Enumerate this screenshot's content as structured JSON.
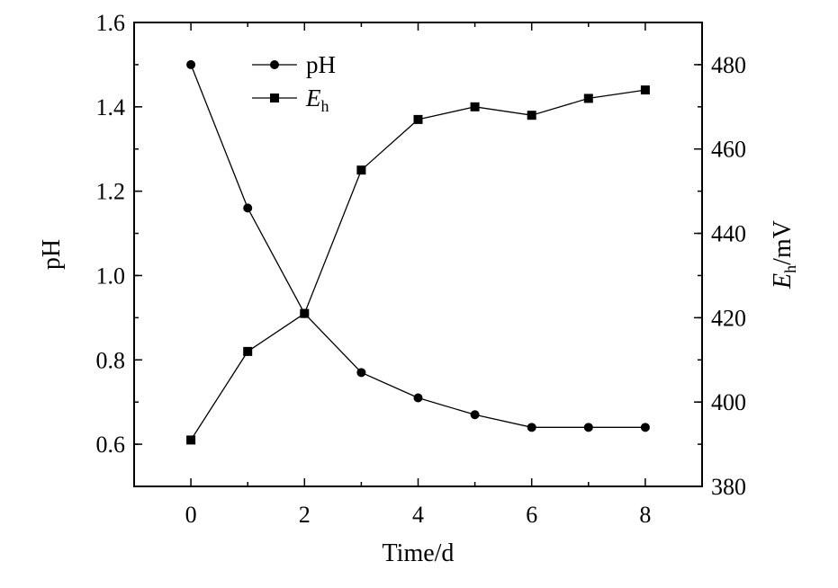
{
  "chart_data": {
    "type": "line",
    "xlabel": "Time/d",
    "ylabel_left": "pH",
    "ylabel_right": "E_h/mV",
    "ylabel_right_parts": {
      "main": "E",
      "sub": "h",
      "rest": "/mV"
    },
    "xlim": [
      -1,
      9
    ],
    "ylim_left": [
      0.5,
      1.6
    ],
    "ylim_right": [
      380,
      490
    ],
    "x_ticks": [
      0,
      2,
      4,
      6,
      8
    ],
    "y_left_ticks": [
      "0.6",
      "0.8",
      "1.0",
      "1.2",
      "1.4",
      "1.6"
    ],
    "y_right_ticks": [
      "380",
      "400",
      "420",
      "440",
      "460",
      "480"
    ],
    "legend_position": "top-left",
    "series": [
      {
        "name": "pH",
        "axis": "left",
        "marker": "circle",
        "x": [
          0,
          1,
          2,
          3,
          4,
          5,
          6,
          7,
          8
        ],
        "values": [
          1.5,
          1.16,
          0.91,
          0.77,
          0.71,
          0.67,
          0.64,
          0.64,
          0.64
        ]
      },
      {
        "name": "E_h",
        "name_parts": {
          "main": "E",
          "sub": "h"
        },
        "axis": "right",
        "marker": "square",
        "x": [
          0,
          1,
          2,
          3,
          4,
          5,
          6,
          7,
          8
        ],
        "values": [
          391,
          412,
          421,
          455,
          467,
          470,
          468,
          472,
          474
        ]
      }
    ]
  }
}
